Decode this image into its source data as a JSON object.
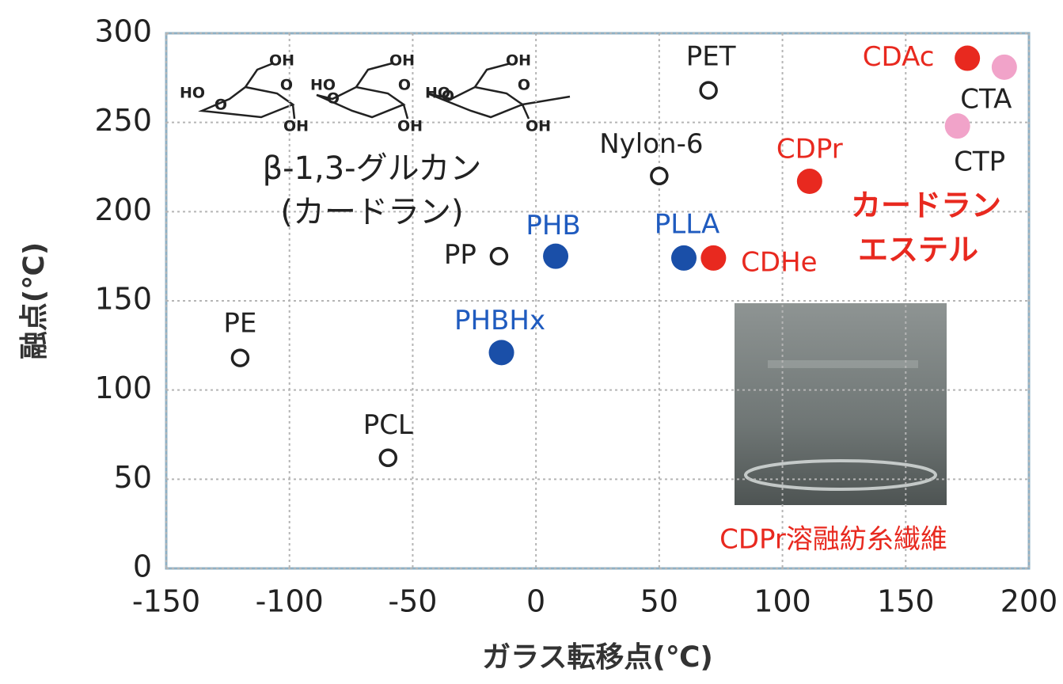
{
  "chart_data": {
    "type": "scatter",
    "xlabel": "ガラス転移点(℃)",
    "ylabel": "融点(℃)",
    "xlim": [
      -150,
      200
    ],
    "ylim": [
      0,
      300
    ],
    "xticks": [
      -150,
      -100,
      -50,
      0,
      50,
      100,
      150,
      200
    ],
    "yticks": [
      0,
      50,
      100,
      150,
      200,
      250,
      300
    ],
    "grid": true,
    "series": [
      {
        "color": "#222222",
        "marker": "open",
        "label_color": "#222222",
        "labels": [
          "PE",
          "PCL",
          "PP",
          "PET",
          "Nylon-6"
        ],
        "x": [
          -120,
          -60,
          -15,
          70,
          50
        ],
        "values": [
          118,
          62,
          175,
          268,
          220
        ]
      },
      {
        "color": "#1a4fa8",
        "marker": "filled",
        "label_color": "#1f5bbf",
        "labels": [
          "PHB",
          "PHBHx",
          "PLLA"
        ],
        "x": [
          8,
          -14,
          60
        ],
        "values": [
          175,
          121,
          174
        ]
      },
      {
        "color": "#e8291f",
        "marker": "filled",
        "label_color": "#e8291f",
        "labels": [
          "CDHe",
          "CDPr",
          "CDAc"
        ],
        "x": [
          72,
          111,
          175
        ],
        "values": [
          174,
          217,
          286
        ]
      },
      {
        "color": "#f1a3c9",
        "marker": "filled",
        "label_color": "#222222",
        "labels": [
          "CTA",
          "CTP"
        ],
        "x": [
          190,
          171
        ],
        "values": [
          281,
          248
        ]
      }
    ],
    "annotations": [
      "β-1,3-グルカン",
      "(カードラン)",
      "カードラン",
      "エステル",
      "CDPr溶融紡糸繊維"
    ],
    "structure_labels": [
      "HO",
      "O",
      "OH",
      "O",
      "OH",
      "HO",
      "O",
      "OH",
      "O",
      "OH",
      "HO",
      "O",
      "OH",
      "O",
      "OH"
    ]
  }
}
